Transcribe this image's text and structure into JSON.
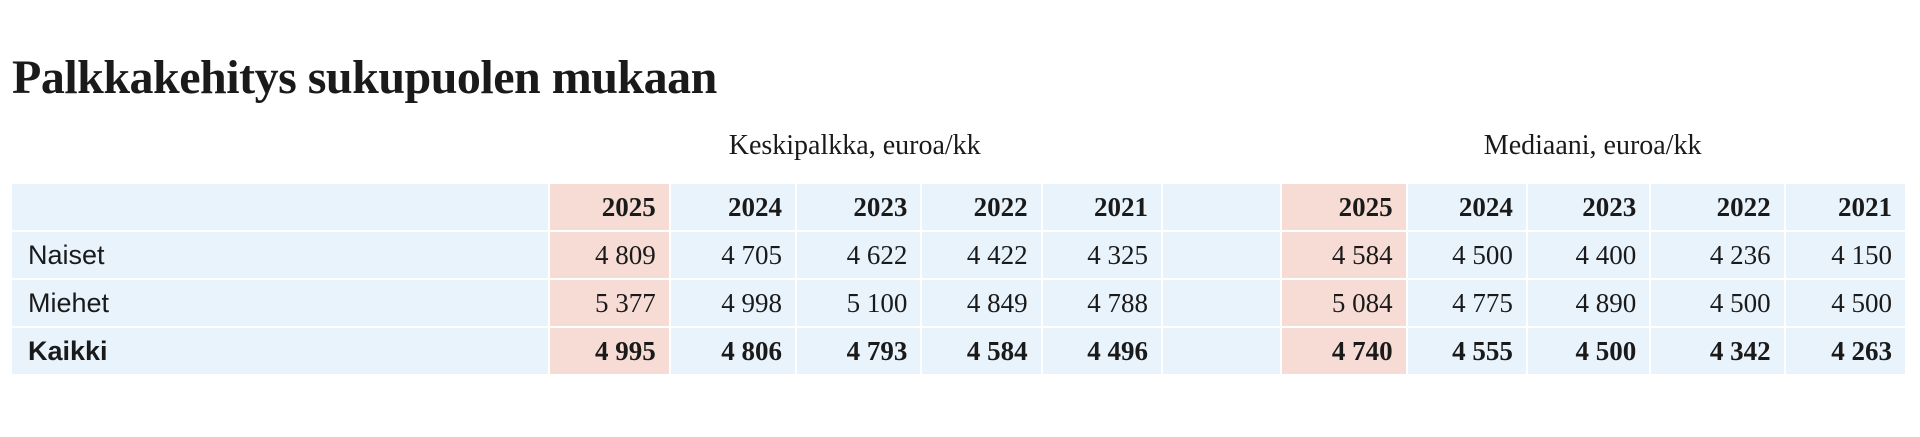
{
  "title": "Palkkakehitys sukupuolen mukaan",
  "table": {
    "groups": [
      {
        "title": "Keskipalkka, euroa/kk",
        "years": [
          2025,
          2024,
          2023,
          2022,
          2021
        ]
      },
      {
        "title": "Mediaani, euroa/kk",
        "years": [
          2025,
          2024,
          2023,
          2022,
          2021
        ]
      }
    ],
    "rows": [
      {
        "label": "Naiset",
        "values": [
          [
            "4 809",
            "4 705",
            "4 622",
            "4 422",
            "4 325"
          ],
          [
            "4 584",
            "4 500",
            "4 400",
            "4 236",
            "4 150"
          ]
        ]
      },
      {
        "label": "Miehet",
        "values": [
          [
            "5 377",
            "4 998",
            "5 100",
            "4 849",
            "4 788"
          ],
          [
            "5 084",
            "4 775",
            "4 890",
            "4 500",
            "4 500"
          ]
        ]
      },
      {
        "label": "Kaikki",
        "values": [
          [
            "4 995",
            "4 806",
            "4 793",
            "4 584",
            "4 496"
          ],
          [
            "4 740",
            "4 555",
            "4 500",
            "4 342",
            "4 263"
          ]
        ]
      }
    ]
  }
}
